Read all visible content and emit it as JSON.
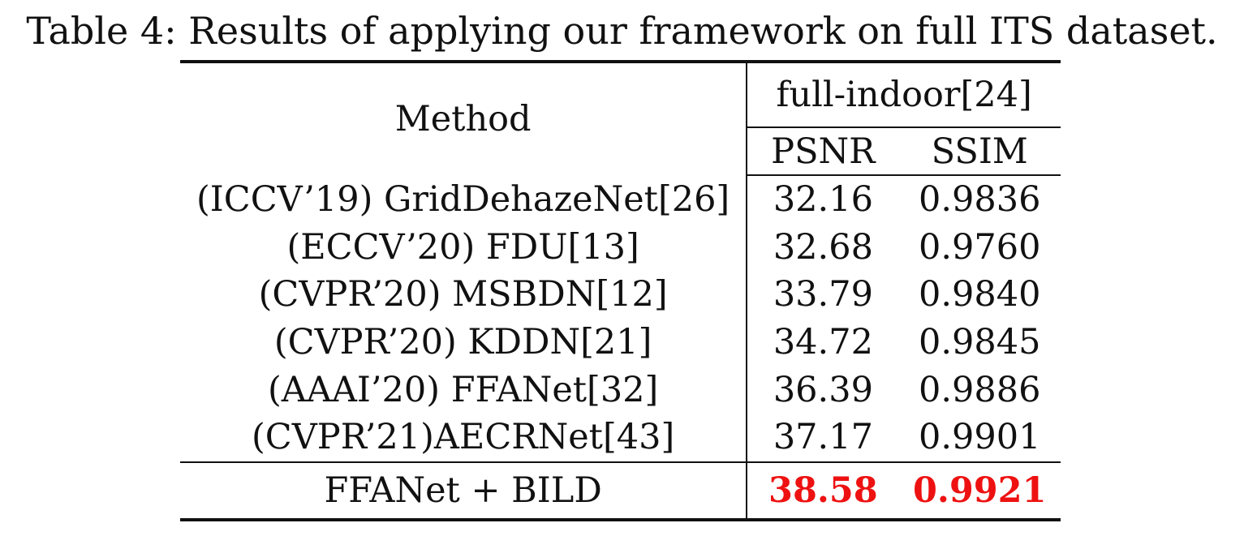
{
  "caption": "Table 4: Results of applying our framework on full ITS dataset.",
  "table": {
    "method_header": "Method",
    "dataset_header": "full-indoor[24]",
    "columns": [
      "PSNR",
      "SSIM"
    ],
    "rows": [
      {
        "method": "(ICCV’19) GridDehazeNet[26]",
        "psnr": "32.16",
        "ssim": "0.9836"
      },
      {
        "method": "(ECCV’20) FDU[13]",
        "psnr": "32.68",
        "ssim": "0.9760"
      },
      {
        "method": "(CVPR’20) MSBDN[12]",
        "psnr": "33.79",
        "ssim": "0.9840"
      },
      {
        "method": "(CVPR’20) KDDN[21]",
        "psnr": "34.72",
        "ssim": "0.9845"
      },
      {
        "method": "(AAAI’20) FFANet[32]",
        "psnr": "36.39",
        "ssim": "0.9886"
      },
      {
        "method": "(CVPR’21)AECRNet[43]",
        "psnr": "37.17",
        "ssim": "0.9901"
      }
    ],
    "ours": {
      "method": "FFANet + BILD",
      "psnr": "38.58",
      "ssim": "0.9921"
    },
    "highlight_color": "#ee1111"
  }
}
